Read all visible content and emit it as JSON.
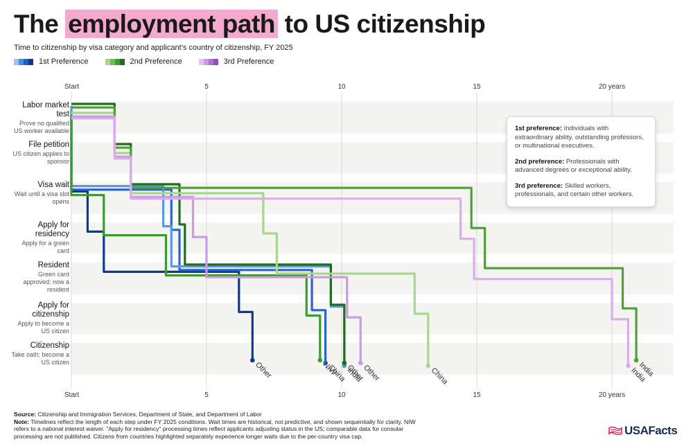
{
  "header": {
    "title_before": "The",
    "title_highlight": "employment path",
    "title_after": "to US citizenship",
    "subtitle": "Time to citizenship by visa category and applicant's country of citizenship, FY 2025"
  },
  "legend": [
    {
      "label": "1st Preference",
      "colors": [
        "#9cc3f0",
        "#4a8be0",
        "#1f5fc4",
        "#0c3a8e"
      ]
    },
    {
      "label": "2nd Preference",
      "colors": [
        "#a9d68f",
        "#6cbf52",
        "#3c9a2e",
        "#1f6f1a"
      ]
    },
    {
      "label": "3rd Preference",
      "colors": [
        "#e6c2f2",
        "#cf97e8",
        "#b36fd6",
        "#8f4db8"
      ]
    }
  ],
  "stages": [
    {
      "title": "Labor market test",
      "desc": "Prove no qualified US worker available"
    },
    {
      "title": "File petition",
      "desc": "US citizen applies to sponsor"
    },
    {
      "title": "Visa wait",
      "desc": "Wait until a visa slot opens"
    },
    {
      "title": "Apply for residency",
      "desc": "Apply for a green card"
    },
    {
      "title": "Resident",
      "desc": "Green card approved; now a resident"
    },
    {
      "title": "Apply for citizenship",
      "desc": "Apply to become a US citizen"
    },
    {
      "title": "Citizenship",
      "desc": "Take oath; become a US citizen"
    }
  ],
  "infobox": [
    {
      "term": "1st preference:",
      "text": "Individuals with extraordinary ability, outstanding professors, or multinational executives."
    },
    {
      "term": "2nd preference:",
      "text": "Professionals with advanced degrees or exceptional ability."
    },
    {
      "term": "3rd preference:",
      "text": "Skilled workers, professionals, and certain other workers."
    }
  ],
  "footer": {
    "source_label": "Source:",
    "source": "Citizenship and Immigration Services, Department of State, and Department of Labor",
    "note_label": "Note:",
    "note": "Timelines reflect the length of each step under FY 2025 conditions. Wait times are historical, not predictive, and shown sequentially for clarity. NIW refers to a national interest waiver. \"Apply for residency\" processing times reflect applicants adjusting status in the US; comparable data for consular processing are not published. Citizens from countries highlighted separately experience longer waits due to the per-country visa cap."
  },
  "logo": {
    "text": "USAFacts"
  },
  "chart_data": {
    "type": "step-line",
    "x_unit": "years",
    "xlim": [
      0,
      22
    ],
    "x_ticks": [
      {
        "value": 0,
        "label": "Start"
      },
      {
        "value": 5,
        "label": "5"
      },
      {
        "value": 10,
        "label": "10"
      },
      {
        "value": 15,
        "label": "15"
      },
      {
        "value": 20,
        "label": "20 years"
      }
    ],
    "stages": [
      "Labor market test",
      "File petition",
      "Visa wait",
      "Apply for residency",
      "Resident",
      "Apply for citizenship",
      "Citizenship"
    ],
    "series": [
      {
        "name": "Other",
        "preference": "1st Preference",
        "color": "#0c3a8e",
        "label": "Other",
        "step_end_years": [
          0,
          0,
          0.6,
          1.2,
          6.2,
          6.7,
          6.7
        ]
      },
      {
        "name": "China",
        "preference": "1st Preference",
        "color": "#2a64c8",
        "label": "China",
        "step_end_years": [
          0,
          0,
          3.7,
          4.0,
          8.9,
          9.4,
          9.4
        ]
      },
      {
        "name": "India",
        "preference": "1st Preference",
        "color": "#5b97e3",
        "label": "India",
        "step_end_years": [
          0,
          0,
          3.4,
          3.7,
          9.6,
          10.1,
          10.1
        ]
      },
      {
        "name": "NIW",
        "preference": "2nd Preference",
        "color": "#3c9a2e",
        "label": "NIW",
        "step_end_years": [
          0,
          0,
          1.2,
          3.5,
          8.7,
          9.2,
          9.2
        ]
      },
      {
        "name": "Other",
        "preference": "2nd Preference",
        "color": "#1f6f1a",
        "label": "Other",
        "step_end_years": [
          1.6,
          2.2,
          4.0,
          4.2,
          9.6,
          10.1,
          10.1
        ]
      },
      {
        "name": "China",
        "preference": "2nd Preference",
        "color": "#a9d68f",
        "label": "China",
        "step_end_years": [
          1.6,
          2.2,
          7.1,
          7.6,
          12.7,
          13.2,
          13.2
        ]
      },
      {
        "name": "India",
        "preference": "2nd Preference",
        "color": "#4f9e36",
        "label": "India",
        "step_end_years": [
          1.6,
          2.2,
          14.8,
          15.3,
          20.4,
          20.9,
          20.9
        ]
      },
      {
        "name": "Other",
        "preference": "3rd Preference",
        "color": "#cf97e8",
        "label": "Other",
        "step_end_years": [
          1.6,
          2.2,
          4.5,
          5.0,
          10.2,
          10.7,
          10.7
        ]
      },
      {
        "name": "India",
        "preference": "3rd Preference",
        "color": "#dcaaef",
        "label": "India",
        "step_end_years": [
          1.6,
          2.2,
          14.4,
          14.9,
          20.0,
          20.6,
          20.6
        ]
      }
    ]
  }
}
